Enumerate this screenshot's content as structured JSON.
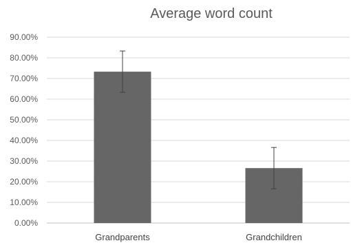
{
  "chart_data": {
    "type": "bar",
    "title": "Average word count",
    "categories": [
      "Grandparents",
      "Grandchildren"
    ],
    "values": [
      73.3,
      26.6
    ],
    "error": [
      10.0,
      10.0
    ],
    "yticks": [
      "0.00%",
      "10.00%",
      "20.00%",
      "30.00%",
      "40.00%",
      "50.00%",
      "60.00%",
      "70.00%",
      "80.00%",
      "90.00%"
    ],
    "ylim": [
      0,
      90
    ],
    "grid": true,
    "colors": {
      "bar": "#666666"
    }
  }
}
